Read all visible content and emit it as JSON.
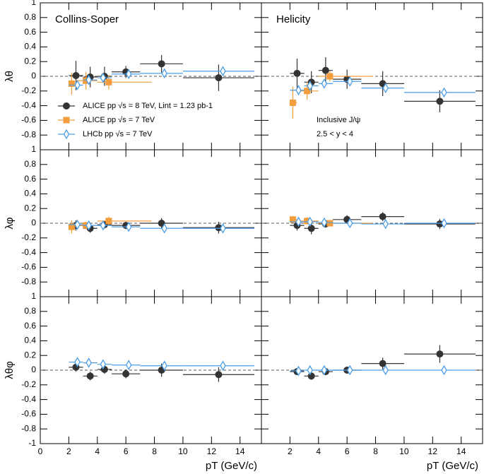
{
  "chart_data": [
    {
      "type": "scatter",
      "title": "Collins-Soper",
      "ylabel": "λθ",
      "ylim": [
        -1,
        1
      ],
      "xlim": [
        0,
        15.5
      ],
      "yticks": [
        -0.8,
        -0.6,
        -0.4,
        -0.2,
        0,
        0.2,
        0.4,
        0.6,
        0.8,
        1
      ],
      "series": [
        {
          "name": "ALICE pp √s = 8 TeV, Lint = 1.23 pb-1",
          "color": "#333333",
          "marker": "circle",
          "x": [
            2.5,
            3.5,
            4.5,
            6,
            8.5,
            12.5
          ],
          "xmin": [
            2,
            3,
            4,
            5,
            7,
            10
          ],
          "xmax": [
            3,
            4,
            5,
            7,
            10,
            15
          ],
          "values": [
            0.01,
            -0.01,
            0.0,
            0.06,
            0.17,
            -0.02
          ],
          "yerr": [
            0.2,
            0.14,
            0.13,
            0.08,
            0.12,
            0.18
          ]
        },
        {
          "name": "ALICE pp √s = 7 TeV",
          "color": "#f39c3c",
          "marker": "square",
          "x": [
            2.2,
            3.2,
            4.8
          ],
          "xmin": [
            2,
            2.5,
            4
          ],
          "xmax": [
            2.5,
            4,
            7.8
          ],
          "values": [
            -0.1,
            -0.06,
            -0.08
          ],
          "yerr": [
            0.15,
            0.12,
            0.1
          ]
        },
        {
          "name": "LHCb pp √s = 7 TeV",
          "color": "#4a9ee8",
          "marker": "diamond",
          "x": [
            2.6,
            3.4,
            4.4,
            6.2,
            8.7,
            12.8
          ],
          "xmin": [
            2,
            3,
            4,
            5,
            7,
            10
          ],
          "xmax": [
            3,
            4,
            5,
            7,
            10,
            15
          ],
          "values": [
            -0.12,
            -0.05,
            -0.02,
            0.03,
            0.04,
            0.07
          ],
          "yerr": [
            0.05,
            0.04,
            0.03,
            0.03,
            0.02,
            0.03
          ]
        }
      ]
    },
    {
      "type": "scatter",
      "title": "Helicity",
      "annotations": [
        "Inclusive J/ψ",
        "2.5 < y < 4"
      ],
      "ylim": [
        -1,
        1
      ],
      "xlim": [
        0,
        15.5
      ],
      "series": [
        {
          "color": "#333333",
          "marker": "circle",
          "x": [
            2.5,
            3.5,
            4.5,
            6,
            8.5,
            12.5
          ],
          "xmin": [
            2,
            3,
            4,
            5,
            7,
            10
          ],
          "xmax": [
            3,
            4,
            5,
            7,
            10,
            15
          ],
          "values": [
            0.04,
            -0.08,
            0.08,
            -0.04,
            -0.1,
            -0.34
          ],
          "yerr": [
            0.2,
            0.15,
            0.18,
            0.13,
            0.17,
            0.15
          ]
        },
        {
          "color": "#f39c3c",
          "marker": "square",
          "x": [
            2.2,
            3.2,
            4.8
          ],
          "xmin": [
            2,
            2.5,
            4
          ],
          "xmax": [
            2.5,
            4,
            7.8
          ],
          "values": [
            -0.36,
            -0.2,
            0.0
          ],
          "yerr": [
            0.22,
            0.12,
            0.07
          ]
        },
        {
          "color": "#4a9ee8",
          "marker": "diamond",
          "x": [
            2.6,
            3.4,
            4.4,
            6.2,
            8.7,
            12.8
          ],
          "xmin": [
            2,
            3,
            4,
            5,
            7,
            10
          ],
          "xmax": [
            3,
            4,
            5,
            7,
            10,
            15
          ],
          "values": [
            -0.19,
            -0.13,
            -0.1,
            -0.07,
            -0.16,
            -0.22
          ],
          "yerr": [
            0.07,
            0.06,
            0.05,
            0.05,
            0.05,
            0.06
          ]
        }
      ]
    },
    {
      "type": "scatter",
      "ylabel": "λφ",
      "ylim": [
        -1,
        1
      ],
      "xlim": [
        0,
        15.5
      ],
      "yticks": [
        -0.8,
        -0.6,
        -0.4,
        -0.2,
        0,
        0.2,
        0.4,
        0.6,
        0.8,
        1
      ],
      "series": [
        {
          "color": "#333333",
          "marker": "circle",
          "x": [
            2.5,
            3.5,
            4.5,
            6,
            8.5,
            12.5
          ],
          "xmin": [
            2,
            3,
            4,
            5,
            7,
            10
          ],
          "xmax": [
            3,
            4,
            5,
            7,
            10,
            15
          ],
          "values": [
            -0.03,
            -0.07,
            -0.02,
            -0.03,
            0.0,
            -0.06
          ],
          "yerr": [
            0.07,
            0.06,
            0.05,
            0.05,
            0.07,
            0.08
          ]
        },
        {
          "color": "#f39c3c",
          "marker": "square",
          "x": [
            2.2,
            3.2,
            4.8
          ],
          "xmin": [
            2,
            2.5,
            4
          ],
          "xmax": [
            2.5,
            4,
            7.8
          ],
          "values": [
            -0.05,
            -0.03,
            0.03
          ],
          "yerr": [
            0.09,
            0.05,
            0.06
          ]
        },
        {
          "color": "#4a9ee8",
          "marker": "diamond",
          "x": [
            2.6,
            3.4,
            4.4,
            6.2,
            8.7,
            12.8
          ],
          "xmin": [
            2,
            3,
            4,
            5,
            7,
            10
          ],
          "xmax": [
            3,
            4,
            5,
            7,
            10,
            15
          ],
          "values": [
            -0.02,
            -0.03,
            -0.03,
            -0.05,
            -0.07,
            -0.07
          ],
          "yerr": [
            0.03,
            0.02,
            0.02,
            0.02,
            0.02,
            0.03
          ]
        }
      ]
    },
    {
      "type": "scatter",
      "ylim": [
        -1,
        1
      ],
      "xlim": [
        0,
        15.5
      ],
      "series": [
        {
          "color": "#333333",
          "marker": "circle",
          "x": [
            2.5,
            3.5,
            4.5,
            6,
            8.5,
            12.5
          ],
          "xmin": [
            2,
            3,
            4,
            5,
            7,
            10
          ],
          "xmax": [
            3,
            4,
            5,
            7,
            10,
            15
          ],
          "values": [
            -0.03,
            -0.07,
            -0.01,
            0.05,
            0.09,
            -0.01
          ],
          "yerr": [
            0.07,
            0.08,
            0.05,
            0.06,
            0.06,
            0.07
          ]
        },
        {
          "color": "#f39c3c",
          "marker": "square",
          "x": [
            2.2,
            3.2,
            4.8
          ],
          "xmin": [
            2,
            2.5,
            4
          ],
          "xmax": [
            2.5,
            4,
            7.8
          ],
          "values": [
            0.05,
            0.03,
            0.0
          ],
          "yerr": [
            0.05,
            0.05,
            0.04
          ]
        },
        {
          "color": "#4a9ee8",
          "marker": "diamond",
          "x": [
            2.6,
            3.4,
            4.4,
            6.2,
            8.7,
            12.8
          ],
          "xmin": [
            2,
            3,
            4,
            5,
            7,
            10
          ],
          "xmax": [
            3,
            4,
            5,
            7,
            10,
            15
          ],
          "values": [
            0.02,
            0.02,
            0.01,
            0.0,
            -0.01,
            0.0
          ],
          "yerr": [
            0.02,
            0.02,
            0.02,
            0.01,
            0.01,
            0.02
          ]
        }
      ]
    },
    {
      "type": "scatter",
      "ylabel": "λθφ",
      "xlabel": "pT (GeV/c)",
      "ylim": [
        -1,
        1
      ],
      "xlim": [
        0,
        15.5
      ],
      "yticks": [
        -1,
        -0.8,
        -0.6,
        -0.4,
        -0.2,
        0,
        0.2,
        0.4,
        0.6,
        0.8,
        1
      ],
      "xticks": [
        0,
        2,
        4,
        6,
        8,
        10,
        12,
        14
      ],
      "series": [
        {
          "color": "#333333",
          "marker": "circle",
          "x": [
            2.5,
            3.5,
            4.5,
            6,
            8.5,
            12.5
          ],
          "xmin": [
            2,
            3,
            4,
            5,
            7,
            10
          ],
          "xmax": [
            3,
            4,
            5,
            7,
            10,
            15
          ],
          "values": [
            0.04,
            -0.08,
            0.01,
            -0.05,
            0.0,
            -0.06
          ],
          "yerr": [
            0.06,
            0.06,
            0.06,
            0.06,
            0.09,
            0.1
          ]
        },
        {
          "color": "#4a9ee8",
          "marker": "diamond",
          "x": [
            2.6,
            3.4,
            4.4,
            6.2,
            8.7,
            12.8
          ],
          "xmin": [
            2,
            3,
            4,
            5,
            7,
            10
          ],
          "xmax": [
            3,
            4,
            5,
            7,
            10,
            15
          ],
          "values": [
            0.11,
            0.1,
            0.08,
            0.07,
            0.06,
            0.06
          ],
          "yerr": [
            0.03,
            0.03,
            0.03,
            0.03,
            0.03,
            0.03
          ]
        }
      ]
    },
    {
      "type": "scatter",
      "xlabel": "pT (GeV/c)",
      "ylim": [
        -1,
        1
      ],
      "xlim": [
        0,
        15.5
      ],
      "xticks": [
        2,
        4,
        6,
        8,
        10,
        12,
        14
      ],
      "series": [
        {
          "color": "#333333",
          "marker": "circle",
          "x": [
            2.5,
            3.5,
            4.5,
            6,
            8.5,
            12.5
          ],
          "xmin": [
            2,
            3,
            4,
            5,
            7,
            10
          ],
          "xmax": [
            3,
            4,
            5,
            7,
            10,
            15
          ],
          "values": [
            -0.02,
            -0.08,
            -0.02,
            0.0,
            0.09,
            0.22
          ],
          "yerr": [
            0.04,
            0.05,
            0.04,
            0.04,
            0.08,
            0.12
          ]
        },
        {
          "color": "#4a9ee8",
          "marker": "diamond",
          "x": [
            2.6,
            3.4,
            4.4,
            6.2,
            8.7,
            12.8
          ],
          "xmin": [
            2,
            3,
            4,
            5,
            7,
            10
          ],
          "xmax": [
            3,
            4,
            5,
            7,
            10,
            15
          ],
          "values": [
            -0.01,
            0.0,
            0.0,
            0.0,
            0.0,
            0.0
          ],
          "yerr": [
            0.02,
            0.02,
            0.01,
            0.01,
            0.01,
            0.01
          ]
        }
      ]
    }
  ]
}
